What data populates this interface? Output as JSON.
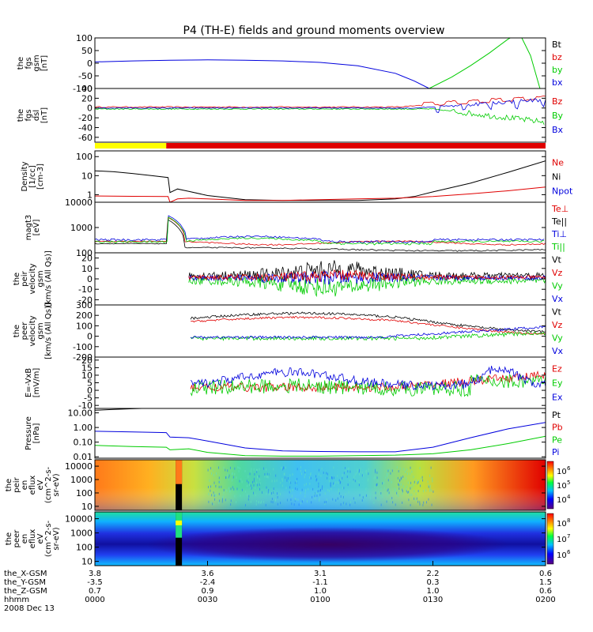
{
  "title": "P4 (TH-E) fields and ground moments overview",
  "colors": {
    "black": "#000000",
    "red": "#e00000",
    "green": "#00cc00",
    "blue": "#0000dd",
    "yellow": "#ffff00"
  },
  "chart_data": [
    {
      "type": "line",
      "id": "fgs-gsm",
      "ylabel": [
        "the",
        "fgs",
        "gsm",
        "[nT]"
      ],
      "ylim": [
        -100,
        100
      ],
      "yticks": [
        "100",
        "50",
        "0",
        "-50",
        "-100"
      ],
      "legend": [
        {
          "name": "Bt",
          "color": "black"
        },
        {
          "name": "bz",
          "color": "red"
        },
        {
          "name": "by",
          "color": "green"
        },
        {
          "name": "bx",
          "color": "blue"
        }
      ],
      "series": [
        {
          "name": "bx",
          "color": "blue",
          "t": [
            0,
            10,
            20,
            30,
            40,
            50,
            60,
            70,
            80,
            85,
            89
          ],
          "y": [
            5,
            9,
            12,
            13,
            12,
            9,
            3,
            -10,
            -40,
            -70,
            -100
          ]
        },
        {
          "name": "by",
          "color": "green",
          "t": [
            89,
            95,
            100,
            105,
            110,
            113,
            114.5
          ],
          "y": [
            -100,
            -55,
            -10,
            40,
            95,
            120,
            140
          ]
        },
        {
          "name": "by2",
          "color": "green",
          "t": [
            113,
            116,
            118.5
          ],
          "y": [
            120,
            30,
            -100
          ]
        }
      ]
    },
    {
      "type": "line",
      "id": "fgs-dsl",
      "ylabel": [
        "the",
        "fgs",
        "dsl",
        "[nT]"
      ],
      "ylim": [
        -70,
        40
      ],
      "yticks": [
        "40",
        "20",
        "0",
        "-20",
        "-40",
        "-60"
      ],
      "legend": [
        {
          "name": "Bz",
          "color": "red"
        },
        {
          "name": "By",
          "color": "green"
        },
        {
          "name": "Bx",
          "color": "blue"
        }
      ],
      "series": []
    },
    {
      "type": "bar",
      "id": "mode-bar",
      "segments": [
        {
          "from": 0,
          "to": 19,
          "color": "yellow"
        },
        {
          "from": 19,
          "to": 120,
          "color": "red"
        }
      ]
    },
    {
      "type": "line",
      "id": "density",
      "ylabel": [
        "Density",
        "[1/cc]",
        "[cm-3]"
      ],
      "log": true,
      "ylim": [
        0.4,
        200
      ],
      "yticks": [
        "100",
        "10",
        "1"
      ],
      "legend": [
        {
          "name": "Ne",
          "color": "red"
        },
        {
          "name": "Ni",
          "color": "black"
        },
        {
          "name": "Npot",
          "color": "blue"
        }
      ],
      "series": [
        {
          "name": "Ni",
          "color": "black",
          "t": [
            0,
            5,
            10,
            15,
            19.5,
            20,
            22,
            25,
            30,
            40,
            50,
            60,
            70,
            80,
            85,
            90,
            100,
            110,
            120
          ],
          "y": [
            18,
            16,
            13,
            10,
            8,
            1.3,
            2,
            1.5,
            0.9,
            0.55,
            0.5,
            0.5,
            0.5,
            0.6,
            0.8,
            1.4,
            4,
            15,
            60
          ]
        },
        {
          "name": "Ne",
          "color": "red",
          "t": [
            0,
            10,
            19.5,
            20,
            22,
            25,
            30,
            40,
            50,
            60,
            70,
            80,
            90,
            100,
            110,
            120
          ],
          "y": [
            0.85,
            0.82,
            0.8,
            0.4,
            0.6,
            0.65,
            0.6,
            0.5,
            0.5,
            0.55,
            0.6,
            0.65,
            0.8,
            1.1,
            1.6,
            2.5
          ]
        }
      ]
    },
    {
      "type": "line",
      "id": "temperature",
      "ylabel": [
        "magt3",
        "[eV]"
      ],
      "log": true,
      "ylim": [
        100,
        10000
      ],
      "yticks": [
        "10000",
        "1000",
        "100"
      ],
      "legend": [
        {
          "name": "Te⊥",
          "color": "red"
        },
        {
          "name": "Te||",
          "color": "black"
        },
        {
          "name": "Ti⊥",
          "color": "blue"
        },
        {
          "name": "Ti||",
          "color": "green"
        }
      ],
      "series": []
    },
    {
      "type": "line",
      "id": "peir-velocity",
      "ylabel": [
        "the",
        "peir",
        "velocity",
        "gsm",
        "[km/s (All Qs)]"
      ],
      "ylim": [
        -25,
        25
      ],
      "yticks": [
        "20",
        "10",
        "0",
        "-10",
        "-20"
      ],
      "legend": [
        {
          "name": "Vt",
          "color": "black"
        },
        {
          "name": "Vz",
          "color": "red"
        },
        {
          "name": "Vy",
          "color": "green"
        },
        {
          "name": "Vx",
          "color": "blue"
        }
      ],
      "series": []
    },
    {
      "type": "line",
      "id": "peer-velocity",
      "ylabel": [
        "the",
        "peer",
        "velocity",
        "gsm",
        "[km/s (All Qs)]"
      ],
      "ylim": [
        -200,
        300
      ],
      "yticks": [
        "300",
        "200",
        "100",
        "0",
        "-100",
        "-200"
      ],
      "legend": [
        {
          "name": "Vt",
          "color": "black"
        },
        {
          "name": "Vz",
          "color": "red"
        },
        {
          "name": "Vy",
          "color": "green"
        },
        {
          "name": "Vx",
          "color": "blue"
        }
      ],
      "series": []
    },
    {
      "type": "line",
      "id": "efield",
      "ylabel": [
        "E=-VxB",
        "[mV/m]"
      ],
      "ylim": [
        -12,
        22
      ],
      "yticks": [
        "20",
        "15",
        "10",
        "5",
        "0",
        "-5",
        "-10"
      ],
      "legend": [
        {
          "name": "Ez",
          "color": "red"
        },
        {
          "name": "Ey",
          "color": "green"
        },
        {
          "name": "Ex",
          "color": "blue"
        }
      ],
      "series": []
    },
    {
      "type": "line",
      "id": "pressure",
      "ylabel": [
        "Pressure",
        "[nPa]"
      ],
      "log": true,
      "ylim": [
        0.008,
        20
      ],
      "yticks": [
        "10.00",
        "1.00",
        "0.10",
        "0.01"
      ],
      "legend": [
        {
          "name": "Pt",
          "color": "black"
        },
        {
          "name": "Pb",
          "color": "red"
        },
        {
          "name": "Pe",
          "color": "green"
        },
        {
          "name": "Pi",
          "color": "blue"
        }
      ],
      "series": [
        {
          "name": "Pt",
          "color": "black",
          "t": [
            0,
            5,
            10,
            15,
            19
          ],
          "y": [
            15,
            17,
            19,
            21,
            22
          ]
        },
        {
          "name": "Pi",
          "color": "blue",
          "t": [
            0,
            10,
            19,
            20,
            25,
            30,
            40,
            50,
            60,
            70,
            80,
            90,
            100,
            110,
            120
          ],
          "y": [
            0.55,
            0.5,
            0.45,
            0.22,
            0.2,
            0.12,
            0.04,
            0.025,
            0.023,
            0.022,
            0.022,
            0.045,
            0.2,
            0.8,
            2.2
          ]
        },
        {
          "name": "Pe",
          "color": "green",
          "t": [
            0,
            10,
            19,
            20,
            25,
            30,
            40,
            50,
            60,
            70,
            80,
            90,
            100,
            110,
            120
          ],
          "y": [
            0.06,
            0.05,
            0.045,
            0.03,
            0.035,
            0.02,
            0.012,
            0.011,
            0.011,
            0.012,
            0.013,
            0.016,
            0.03,
            0.08,
            0.25
          ]
        }
      ]
    },
    {
      "type": "heatmap",
      "id": "peir-en-eflux",
      "ylabel": [
        "the",
        "peir",
        "en",
        "eflux",
        "eV",
        "(cm^2-s-",
        "sr-eV)"
      ],
      "yticks": [
        "10000",
        "1000",
        "100",
        "10"
      ],
      "colorbar": {
        "labels": [
          "10",
          "10",
          "10"
        ],
        "exps": [
          "6",
          "5",
          "4"
        ]
      }
    },
    {
      "type": "heatmap",
      "id": "peer-en-eflux",
      "ylabel": [
        "the",
        "peer",
        "en",
        "eflux",
        "eV",
        "(cm^2-s-",
        "sr-eV)"
      ],
      "yticks": [
        "10000",
        "1000",
        "100",
        "10"
      ],
      "colorbar": {
        "labels": [
          "10",
          "10",
          "10"
        ],
        "exps": [
          "8",
          "7",
          "6"
        ]
      }
    }
  ],
  "xaxis": {
    "row_labels": [
      "the_X-GSM",
      "the_Y-GSM",
      "the_Z-GSM",
      "hhmm",
      "2008 Dec 13"
    ],
    "columns": [
      {
        "t": 0,
        "values": [
          "3.8",
          "-3.5",
          "0.7",
          "0000"
        ]
      },
      {
        "t": 30,
        "values": [
          "3.6",
          "-2.4",
          "0.9",
          "0030"
        ]
      },
      {
        "t": 60,
        "values": [
          "3.1",
          "-1.1",
          "1.0",
          "0100"
        ]
      },
      {
        "t": 90,
        "values": [
          "2.2",
          "0.3",
          "1.0",
          "0130"
        ]
      },
      {
        "t": 120,
        "values": [
          "0.6",
          "1.5",
          "0.6",
          "0200"
        ]
      }
    ]
  }
}
